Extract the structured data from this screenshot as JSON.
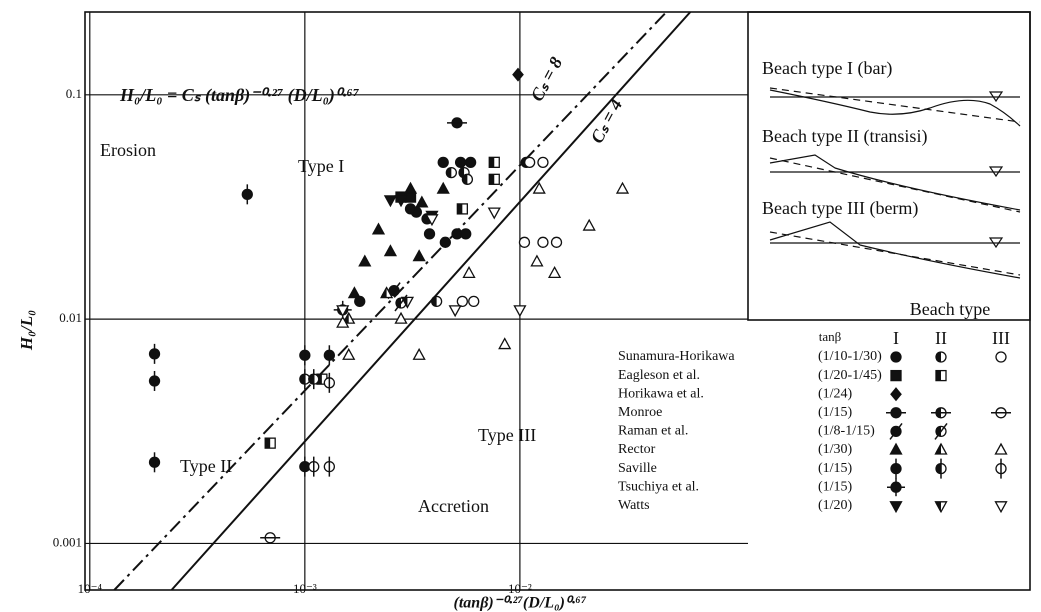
{
  "chart_data": {
    "type": "scatter",
    "equation": "H₀/L₀ = Cₛ (tanβ)⁻⁰·²⁷ (D/L₀)⁰·⁶⁷",
    "x_label": "(tanβ)⁻⁰·²⁷(D/L₀)⁰·⁶⁷",
    "y_label": "H₀/L₀",
    "log_x": true,
    "log_y": true,
    "grid": true,
    "xlim": [
      9.5e-05,
      0.115
    ],
    "ylim": [
      0.00062,
      0.234
    ],
    "xticks": [
      {
        "value": 0.0001,
        "label": "10⁻⁴"
      },
      {
        "value": 0.001,
        "label": "10⁻³"
      },
      {
        "value": 0.01,
        "label": "10⁻²"
      }
    ],
    "yticks": [
      0.001,
      0.01,
      0.1
    ],
    "annotations": [
      "Erosion",
      "Type I",
      "Type II",
      "Type III",
      "Accretion"
    ],
    "lines": [
      {
        "name": "Cₛ = 8",
        "style": "dashed",
        "x": [
          0.00013,
          0.048
        ],
        "y": [
          0.00062,
          0.234
        ]
      },
      {
        "name": "Cₛ = 4",
        "style": "solid",
        "x": [
          0.00024,
          0.062
        ],
        "y": [
          0.00062,
          0.234
        ]
      }
    ],
    "inset_titles": [
      "Beach type I (bar)",
      "Beach type II (transisi)",
      "Beach type III (berm)"
    ],
    "legend_title": "Beach type",
    "tan_beta_label": "tanβ",
    "type_labels": [
      "I",
      "II",
      "III"
    ],
    "series": [
      {
        "name": "Sunamura-Horikawa",
        "tan_beta": "(1/10-1/30)",
        "marker": "circle",
        "groups": [
          {
            "x": [
              0.0044,
              0.0053,
              0.0059,
              0.0107,
              0.0038,
              0.0045,
              0.0037,
              0.0033,
              0.0031,
              0.0018,
              0.0051,
              0.0056
            ],
            "y": [
              0.05,
              0.05,
              0.05,
              0.05,
              0.024,
              0.022,
              0.028,
              0.03,
              0.031,
              0.012,
              0.024,
              0.024
            ]
          },
          {
            "x": [
              0.0041,
              0.0048,
              0.0055,
              0.0057
            ],
            "y": [
              0.012,
              0.045,
              0.045,
              0.042
            ]
          },
          {
            "x": [
              0.0111,
              0.0128,
              0.0105,
              0.0128,
              0.0148,
              0.0054,
              0.0061
            ],
            "y": [
              0.05,
              0.05,
              0.022,
              0.022,
              0.022,
              0.012,
              0.012
            ]
          }
        ]
      },
      {
        "name": "Eagleson et al.",
        "tan_beta": "(1/20-1/45)",
        "marker": "square",
        "groups": [
          {
            "x": [
              0.0028,
              0.0031
            ],
            "y": [
              0.035,
              0.035
            ]
          },
          {
            "x": [
              0.0076,
              0.0076,
              0.0054,
              0.0012,
              0.00069
            ],
            "y": [
              0.05,
              0.042,
              0.031,
              0.0054,
              0.0028
            ]
          },
          null
        ]
      },
      {
        "name": "Horikawa et al.",
        "tan_beta": "(1/24)",
        "marker": "diamond",
        "groups": [
          {
            "x": [
              0.0098
            ],
            "y": [
              0.123
            ]
          },
          null,
          null
        ]
      },
      {
        "name": "Monroe",
        "tan_beta": "(1/15)",
        "marker": "circle-hbar",
        "groups": [
          {
            "x": [
              0.0051
            ],
            "y": [
              0.075
            ]
          },
          {
            "x": [],
            "y": []
          },
          {
            "x": [
              0.00069
            ],
            "y": [
              0.00106
            ]
          }
        ]
      },
      {
        "name": "Raman et al.",
        "tan_beta": "(1/8-1/15)",
        "marker": "circle-slash",
        "groups": [
          {
            "x": [
              0.0026
            ],
            "y": [
              0.0134
            ]
          },
          {
            "x": [
              0.0028
            ],
            "y": [
              0.0118
            ]
          },
          null
        ]
      },
      {
        "name": "Rector",
        "tan_beta": "(1/30)",
        "marker": "triangle",
        "groups": [
          {
            "x": [
              0.0022,
              0.0031,
              0.0034,
              0.0044,
              0.0019,
              0.0017,
              0.0025,
              0.0035
            ],
            "y": [
              0.025,
              0.038,
              0.019,
              0.038,
              0.018,
              0.013,
              0.02,
              0.033
            ]
          },
          {
            "x": [
              0.0016,
              0.0024
            ],
            "y": [
              0.01,
              0.013
            ]
          },
          {
            "x": [
              0.0123,
              0.03,
              0.021,
              0.0145,
              0.012,
              0.0058,
              0.0034,
              0.0016,
              0.0028,
              0.0085,
              0.0015
            ],
            "y": [
              0.038,
              0.038,
              0.026,
              0.016,
              0.018,
              0.016,
              0.0069,
              0.0069,
              0.01,
              0.0077,
              0.0096
            ]
          }
        ]
      },
      {
        "name": "Saville",
        "tan_beta": "(1/15)",
        "marker": "circle-vbar",
        "groups": [
          {
            "x": [
              0.0002,
              0.0002,
              0.0002,
              0.00054,
              0.001,
              0.0013,
              0.001
            ],
            "y": [
              0.007,
              0.0053,
              0.0023,
              0.036,
              0.0069,
              0.0069,
              0.0022
            ]
          },
          {
            "x": [
              0.001,
              0.0011
            ],
            "y": [
              0.0054,
              0.0054
            ]
          },
          {
            "x": [
              0.0013,
              0.0013,
              0.0011
            ],
            "y": [
              0.0052,
              0.0022,
              0.0022
            ]
          }
        ]
      },
      {
        "name": "Tsuchiya et al.",
        "tan_beta": "(1/15)",
        "marker": "circle-plus",
        "groups": [
          {
            "x": [
              0.0015
            ],
            "y": [
              0.011
            ]
          },
          null,
          null
        ]
      },
      {
        "name": "Watts",
        "tan_beta": "(1/20)",
        "marker": "triangle-down",
        "groups": [
          {
            "x": [
              0.0025,
              0.0028,
              0.0039
            ],
            "y": [
              0.034,
              0.034,
              0.029
            ]
          },
          {
            "x": [
              0.003
            ],
            "y": [
              0.012
            ]
          },
          {
            "x": [
              0.0039,
              0.0076,
              0.01,
              0.005,
              0.0015
            ],
            "y": [
              0.028,
              0.03,
              0.011,
              0.011,
              0.011
            ]
          }
        ]
      }
    ]
  }
}
